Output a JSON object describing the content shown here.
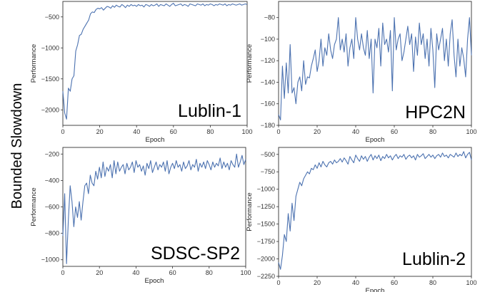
{
  "figure": {
    "shared_ylabel": "Bounded Slowdown"
  },
  "chart_data": [
    {
      "type": "line",
      "panel_label": "Lublin-1",
      "xlabel": "Epoch",
      "ylabel": "Performance",
      "xlim": [
        0,
        100
      ],
      "ylim": [
        -2250,
        -250
      ],
      "xticks": [
        0,
        20,
        40,
        60,
        80,
        100
      ],
      "yticks": [
        -2000,
        -1500,
        -1000,
        -500
      ],
      "line_color": "#4c72b0",
      "grid": false,
      "x": [
        0,
        1,
        2,
        3,
        4,
        5,
        6,
        7,
        8,
        9,
        10,
        11,
        12,
        13,
        14,
        15,
        16,
        17,
        18,
        19,
        20,
        21,
        22,
        23,
        24,
        25,
        26,
        27,
        28,
        29,
        30,
        31,
        32,
        33,
        34,
        35,
        36,
        37,
        38,
        39,
        40,
        41,
        42,
        43,
        44,
        45,
        46,
        47,
        48,
        49,
        50,
        51,
        52,
        53,
        54,
        55,
        56,
        57,
        58,
        59,
        60,
        61,
        62,
        63,
        64,
        65,
        66,
        67,
        68,
        69,
        70,
        71,
        72,
        73,
        74,
        75,
        76,
        77,
        78,
        79,
        80,
        81,
        82,
        83,
        84,
        85,
        86,
        87,
        88,
        89,
        90,
        91,
        92,
        93,
        94,
        95,
        96,
        97,
        98,
        99,
        100
      ],
      "y": [
        -1700,
        -2050,
        -2150,
        -1650,
        -1700,
        -1500,
        -1450,
        -1050,
        -950,
        -800,
        -780,
        -700,
        -650,
        -600,
        -550,
        -450,
        -420,
        -430,
        -380,
        -360,
        -370,
        -350,
        -390,
        -360,
        -330,
        -340,
        -360,
        -320,
        -345,
        -310,
        -330,
        -340,
        -300,
        -320,
        -350,
        -310,
        -330,
        -300,
        -320,
        -310,
        -330,
        -300,
        -320,
        -310,
        -340,
        -300,
        -310,
        -330,
        -300,
        -320,
        -310,
        -290,
        -330,
        -300,
        -310,
        -320,
        -290,
        -310,
        -330,
        -300,
        -280,
        -320,
        -310,
        -300,
        -290,
        -320,
        -300,
        -310,
        -330,
        -290,
        -300,
        -310,
        -320,
        -290,
        -300,
        -310,
        -290,
        -320,
        -300,
        -310,
        -290,
        -300,
        -320,
        -300,
        -310,
        -290,
        -300,
        -310,
        -290,
        -320,
        -300,
        -310,
        -290,
        -300,
        -310,
        -300,
        -290,
        -310,
        -300,
        -290,
        -300
      ]
    },
    {
      "type": "line",
      "panel_label": "HPC2N",
      "xlabel": "Epoch",
      "ylabel": "Performance",
      "xlim": [
        0,
        100
      ],
      "ylim": [
        -180,
        -65
      ],
      "xticks": [
        0,
        20,
        40,
        60,
        80,
        100
      ],
      "yticks": [
        -180,
        -160,
        -140,
        -120,
        -100,
        -80
      ],
      "line_color": "#4c72b0",
      "grid": false,
      "x": [
        0,
        1,
        2,
        3,
        4,
        5,
        6,
        7,
        8,
        9,
        10,
        11,
        12,
        13,
        14,
        15,
        16,
        17,
        18,
        19,
        20,
        21,
        22,
        23,
        24,
        25,
        26,
        27,
        28,
        29,
        30,
        31,
        32,
        33,
        34,
        35,
        36,
        37,
        38,
        39,
        40,
        41,
        42,
        43,
        44,
        45,
        46,
        47,
        48,
        49,
        50,
        51,
        52,
        53,
        54,
        55,
        56,
        57,
        58,
        59,
        60,
        61,
        62,
        63,
        64,
        65,
        66,
        67,
        68,
        69,
        70,
        71,
        72,
        73,
        74,
        75,
        76,
        77,
        78,
        79,
        80,
        81,
        82,
        83,
        84,
        85,
        86,
        87,
        88,
        89,
        90,
        91,
        92,
        93,
        94,
        95,
        96,
        97,
        98,
        99,
        100
      ],
      "y": [
        -170,
        -175,
        -125,
        -155,
        -122,
        -150,
        -105,
        -150,
        -145,
        -160,
        -140,
        -135,
        -148,
        -120,
        -142,
        -135,
        -136,
        -125,
        -118,
        -110,
        -130,
        -120,
        -100,
        -125,
        -108,
        -115,
        -95,
        -110,
        -118,
        -105,
        -100,
        -80,
        -110,
        -100,
        -112,
        -95,
        -125,
        -108,
        -100,
        -118,
        -80,
        -100,
        -110,
        -95,
        -108,
        -115,
        -92,
        -118,
        -100,
        -150,
        -100,
        -108,
        -90,
        -125,
        -85,
        -105,
        -100,
        -112,
        -92,
        -148,
        -80,
        -110,
        -100,
        -95,
        -120,
        -112,
        -100,
        -88,
        -105,
        -95,
        -130,
        -98,
        -115,
        -85,
        -105,
        -95,
        -118,
        -100,
        -125,
        -90,
        -110,
        -145,
        -95,
        -110,
        -100,
        -90,
        -120,
        -100,
        -125,
        -95,
        -82,
        -115,
        -135,
        -100,
        -125,
        -108,
        -118,
        -135,
        -100,
        -80,
        -115
      ]
    },
    {
      "type": "line",
      "panel_label": "SDSC-SP2",
      "xlabel": "Epoch",
      "ylabel": "Performance",
      "xlim": [
        0,
        100
      ],
      "ylim": [
        -1050,
        -150
      ],
      "xticks": [
        0,
        20,
        40,
        60,
        80,
        100
      ],
      "yticks": [
        -1000,
        -800,
        -600,
        -400,
        -200
      ],
      "line_color": "#4c72b0",
      "grid": false,
      "x": [
        0,
        1,
        2,
        3,
        4,
        5,
        6,
        7,
        8,
        9,
        10,
        11,
        12,
        13,
        14,
        15,
        16,
        17,
        18,
        19,
        20,
        21,
        22,
        23,
        24,
        25,
        26,
        27,
        28,
        29,
        30,
        31,
        32,
        33,
        34,
        35,
        36,
        37,
        38,
        39,
        40,
        41,
        42,
        43,
        44,
        45,
        46,
        47,
        48,
        49,
        50,
        51,
        52,
        53,
        54,
        55,
        56,
        57,
        58,
        59,
        60,
        61,
        62,
        63,
        64,
        65,
        66,
        67,
        68,
        69,
        70,
        71,
        72,
        73,
        74,
        75,
        76,
        77,
        78,
        79,
        80,
        81,
        82,
        83,
        84,
        85,
        86,
        87,
        88,
        89,
        90,
        91,
        92,
        93,
        94,
        95,
        96,
        97,
        98,
        99,
        100
      ],
      "y": [
        -820,
        -500,
        -1030,
        -700,
        -440,
        -560,
        -750,
        -600,
        -680,
        -560,
        -700,
        -560,
        -440,
        -420,
        -500,
        -360,
        -420,
        -440,
        -330,
        -390,
        -300,
        -380,
        -260,
        -370,
        -300,
        -330,
        -280,
        -380,
        -250,
        -350,
        -260,
        -330,
        -300,
        -280,
        -350,
        -270,
        -320,
        -300,
        -260,
        -340,
        -250,
        -300,
        -280,
        -330,
        -290,
        -360,
        -270,
        -310,
        -250,
        -340,
        -300,
        -260,
        -320,
        -280,
        -300,
        -260,
        -330,
        -250,
        -350,
        -300,
        -270,
        -310,
        -250,
        -300,
        -280,
        -330,
        -260,
        -310,
        -290,
        -250,
        -320,
        -280,
        -300,
        -240,
        -330,
        -270,
        -300,
        -260,
        -310,
        -250,
        -280,
        -320,
        -260,
        -300,
        -270,
        -290,
        -230,
        -310,
        -260,
        -300,
        -270,
        -320,
        -250,
        -280,
        -300,
        -200,
        -300,
        -260,
        -210,
        -280,
        -240
      ]
    },
    {
      "type": "line",
      "panel_label": "Lublin-2",
      "xlabel": "Epoch",
      "ylabel": "Performance",
      "xlim": [
        0,
        100
      ],
      "ylim": [
        -2250,
        -400
      ],
      "xticks": [
        0,
        20,
        40,
        60,
        80,
        100
      ],
      "yticks": [
        -2250,
        -2000,
        -1750,
        -1500,
        -1250,
        -1000,
        -750,
        -500
      ],
      "line_color": "#4c72b0",
      "grid": false,
      "x": [
        0,
        1,
        2,
        3,
        4,
        5,
        6,
        7,
        8,
        9,
        10,
        11,
        12,
        13,
        14,
        15,
        16,
        17,
        18,
        19,
        20,
        21,
        22,
        23,
        24,
        25,
        26,
        27,
        28,
        29,
        30,
        31,
        32,
        33,
        34,
        35,
        36,
        37,
        38,
        39,
        40,
        41,
        42,
        43,
        44,
        45,
        46,
        47,
        48,
        49,
        50,
        51,
        52,
        53,
        54,
        55,
        56,
        57,
        58,
        59,
        60,
        61,
        62,
        63,
        64,
        65,
        66,
        67,
        68,
        69,
        70,
        71,
        72,
        73,
        74,
        75,
        76,
        77,
        78,
        79,
        80,
        81,
        82,
        83,
        84,
        85,
        86,
        87,
        88,
        89,
        90,
        91,
        92,
        93,
        94,
        95,
        96,
        97,
        98,
        99,
        100
      ],
      "y": [
        -2050,
        -2150,
        -1950,
        -1650,
        -1750,
        -1350,
        -1600,
        -1200,
        -1450,
        -1100,
        -1000,
        -900,
        -950,
        -850,
        -800,
        -750,
        -780,
        -700,
        -720,
        -650,
        -700,
        -620,
        -680,
        -600,
        -650,
        -680,
        -620,
        -600,
        -640,
        -580,
        -620,
        -600,
        -560,
        -610,
        -550,
        -590,
        -640,
        -530,
        -580,
        -620,
        -510,
        -560,
        -600,
        -520,
        -570,
        -530,
        -600,
        -540,
        -500,
        -580,
        -520,
        -560,
        -510,
        -590,
        -530,
        -560,
        -500,
        -550,
        -520,
        -580,
        -530,
        -500,
        -560,
        -520,
        -540,
        -500,
        -570,
        -530,
        -510,
        -550,
        -520,
        -580,
        -500,
        -540,
        -520,
        -490,
        -560,
        -530,
        -500,
        -540,
        -510,
        -560,
        -520,
        -500,
        -540,
        -480,
        -530,
        -510,
        -550,
        -500,
        -520,
        -540,
        -480,
        -530,
        -500,
        -520,
        -460,
        -550,
        -500,
        -470,
        -580
      ]
    }
  ]
}
